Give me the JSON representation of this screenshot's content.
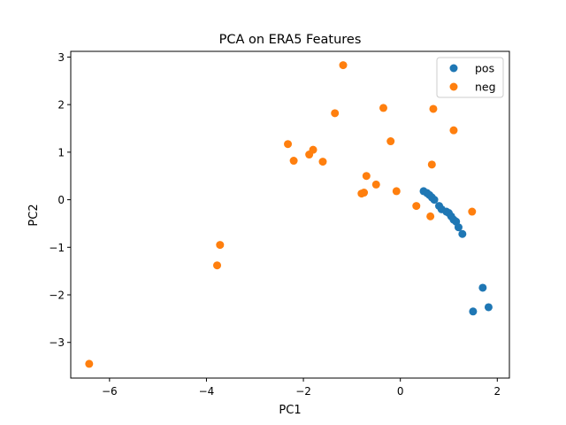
{
  "chart_data": {
    "type": "scatter",
    "title": "PCA on ERA5 Features",
    "xlabel": "PC1",
    "ylabel": "PC2",
    "xlim": [
      -6.8,
      2.25
    ],
    "ylim": [
      -3.75,
      3.12
    ],
    "xticks": [
      -6,
      -4,
      -2,
      0,
      2
    ],
    "yticks": [
      -3,
      -2,
      -1,
      0,
      1,
      2,
      3
    ],
    "grid": false,
    "legend_position": "top-right",
    "series": [
      {
        "name": "pos",
        "color": "#1f77b4",
        "points": [
          [
            0.48,
            0.18
          ],
          [
            0.55,
            0.14
          ],
          [
            0.6,
            0.1
          ],
          [
            0.65,
            0.05
          ],
          [
            0.7,
            0.0
          ],
          [
            0.8,
            -0.13
          ],
          [
            0.85,
            -0.2
          ],
          [
            0.95,
            -0.25
          ],
          [
            1.0,
            -0.28
          ],
          [
            1.05,
            -0.35
          ],
          [
            1.1,
            -0.42
          ],
          [
            1.15,
            -0.46
          ],
          [
            1.2,
            -0.58
          ],
          [
            1.28,
            -0.72
          ],
          [
            1.7,
            -1.85
          ],
          [
            1.82,
            -2.26
          ],
          [
            1.5,
            -2.35
          ]
        ]
      },
      {
        "name": "neg",
        "color": "#ff7f0e",
        "points": [
          [
            -1.18,
            2.83
          ],
          [
            -0.35,
            1.93
          ],
          [
            0.68,
            1.91
          ],
          [
            -1.35,
            1.82
          ],
          [
            1.1,
            1.46
          ],
          [
            -2.32,
            1.17
          ],
          [
            -0.2,
            1.23
          ],
          [
            -1.8,
            1.05
          ],
          [
            -1.88,
            0.95
          ],
          [
            -2.2,
            0.82
          ],
          [
            -1.6,
            0.8
          ],
          [
            0.65,
            0.74
          ],
          [
            -0.7,
            0.5
          ],
          [
            -0.5,
            0.32
          ],
          [
            -0.75,
            0.15
          ],
          [
            -0.8,
            0.13
          ],
          [
            -0.08,
            0.18
          ],
          [
            0.33,
            -0.13
          ],
          [
            0.62,
            -0.35
          ],
          [
            1.48,
            -0.25
          ],
          [
            -3.72,
            -0.95
          ],
          [
            -3.78,
            -1.38
          ],
          [
            -6.42,
            -3.45
          ]
        ]
      }
    ]
  }
}
